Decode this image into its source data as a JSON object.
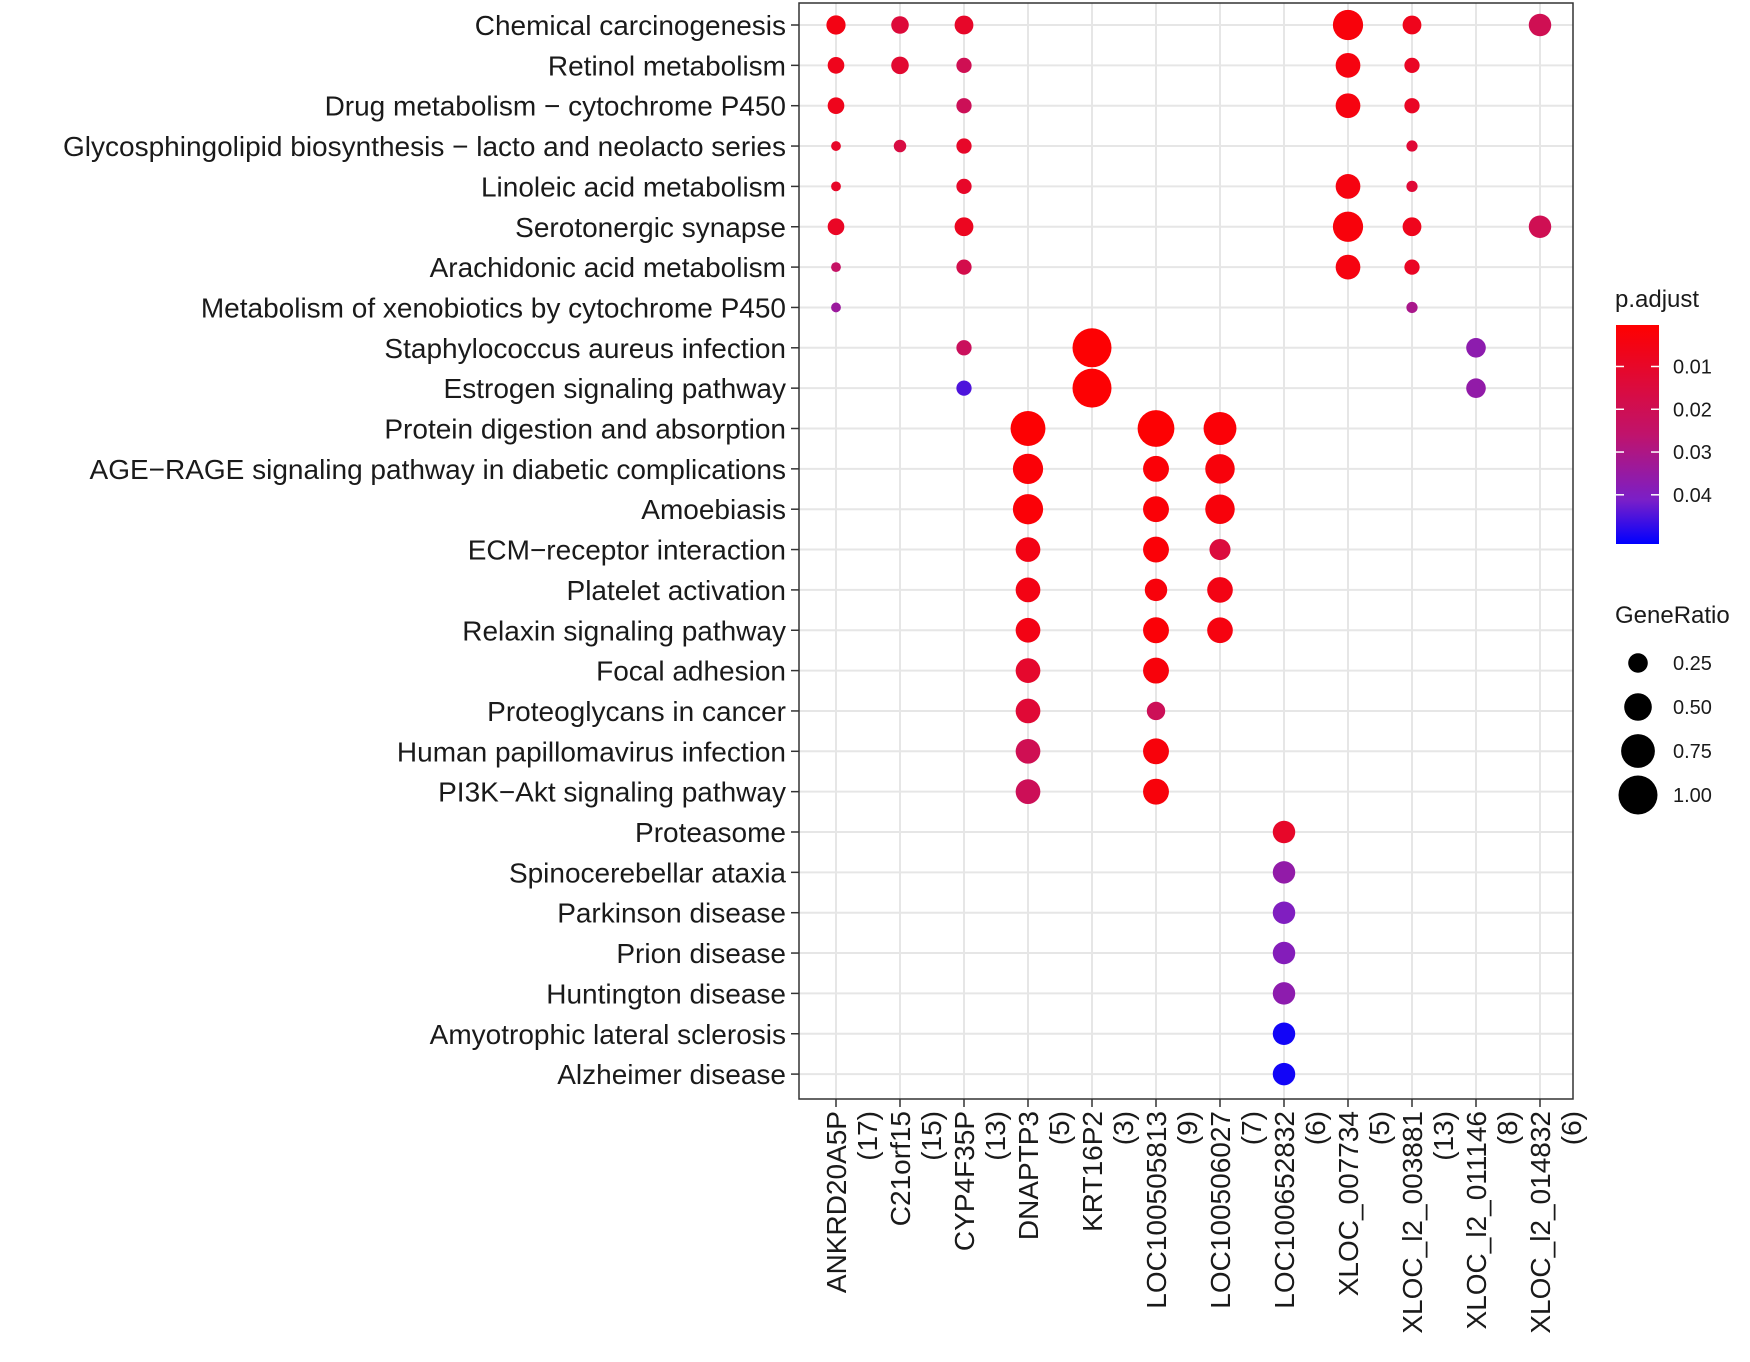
{
  "chart_data": {
    "type": "dotplot",
    "x_categories": [
      {
        "name": "ANKRD20A5P",
        "count": "(17)"
      },
      {
        "name": "C21orf15",
        "count": "(15)"
      },
      {
        "name": "CYP4F35P",
        "count": "(13)"
      },
      {
        "name": "DNAPTP3",
        "count": "(5)"
      },
      {
        "name": "KRT16P2",
        "count": "(3)"
      },
      {
        "name": "LOC100505813",
        "count": "(9)"
      },
      {
        "name": "LOC100506027",
        "count": "(7)"
      },
      {
        "name": "LOC100652832",
        "count": "(6)"
      },
      {
        "name": "XLOC_007734",
        "count": "(5)"
      },
      {
        "name": "XLOC_l2_003881",
        "count": "(13)"
      },
      {
        "name": "XLOC_l2_011146",
        "count": "(8)"
      },
      {
        "name": "XLOC_l2_014832",
        "count": "(6)"
      }
    ],
    "y_categories": [
      "Chemical carcinogenesis",
      "Retinol metabolism",
      "Drug metabolism − cytochrome P450",
      "Glycosphingolipid biosynthesis − lacto and neolacto series",
      "Linoleic acid metabolism",
      "Serotonergic synapse",
      "Arachidonic acid metabolism",
      "Metabolism of xenobiotics by cytochrome P450",
      "Staphylococcus aureus infection",
      "Estrogen signaling pathway",
      "Protein digestion and absorption",
      "AGE−RAGE signaling pathway in diabetic complications",
      "Amoebiasis",
      "ECM−receptor interaction",
      "Platelet activation",
      "Relaxin signaling pathway",
      "Focal adhesion",
      "Proteoglycans in cancer",
      "Human papillomavirus infection",
      "PI3K−Akt signaling pathway",
      "Proteasome",
      "Spinocerebellar ataxia",
      "Parkinson disease",
      "Prion disease",
      "Huntington disease",
      "Amyotrophic lateral sclerosis",
      "Alzheimer disease"
    ],
    "points": [
      {
        "x": "ANKRD20A5P",
        "y": "Chemical carcinogenesis",
        "gene_ratio": 0.24,
        "p_adjust": 0.005
      },
      {
        "x": "ANKRD20A5P",
        "y": "Retinol metabolism",
        "gene_ratio": 0.18,
        "p_adjust": 0.007
      },
      {
        "x": "ANKRD20A5P",
        "y": "Drug metabolism − cytochrome P450",
        "gene_ratio": 0.18,
        "p_adjust": 0.007
      },
      {
        "x": "ANKRD20A5P",
        "y": "Glycosphingolipid biosynthesis − lacto and neolacto series",
        "gene_ratio": 0.06,
        "p_adjust": 0.01
      },
      {
        "x": "ANKRD20A5P",
        "y": "Linoleic acid metabolism",
        "gene_ratio": 0.06,
        "p_adjust": 0.01
      },
      {
        "x": "ANKRD20A5P",
        "y": "Serotonergic synapse",
        "gene_ratio": 0.18,
        "p_adjust": 0.009
      },
      {
        "x": "ANKRD20A5P",
        "y": "Arachidonic acid metabolism",
        "gene_ratio": 0.06,
        "p_adjust": 0.024
      },
      {
        "x": "ANKRD20A5P",
        "y": "Metabolism of xenobiotics by cytochrome P450",
        "gene_ratio": 0.06,
        "p_adjust": 0.034
      },
      {
        "x": "C21orf15",
        "y": "Chemical carcinogenesis",
        "gene_ratio": 0.2,
        "p_adjust": 0.014
      },
      {
        "x": "C21orf15",
        "y": "Retinol metabolism",
        "gene_ratio": 0.2,
        "p_adjust": 0.012
      },
      {
        "x": "C21orf15",
        "y": "Glycosphingolipid biosynthesis − lacto and neolacto series",
        "gene_ratio": 0.1,
        "p_adjust": 0.016
      },
      {
        "x": "CYP4F35P",
        "y": "Chemical carcinogenesis",
        "gene_ratio": 0.23,
        "p_adjust": 0.01
      },
      {
        "x": "CYP4F35P",
        "y": "Retinol metabolism",
        "gene_ratio": 0.15,
        "p_adjust": 0.02
      },
      {
        "x": "CYP4F35P",
        "y": "Drug metabolism − cytochrome P450",
        "gene_ratio": 0.15,
        "p_adjust": 0.021
      },
      {
        "x": "CYP4F35P",
        "y": "Glycosphingolipid biosynthesis − lacto and neolacto series",
        "gene_ratio": 0.15,
        "p_adjust": 0.01
      },
      {
        "x": "CYP4F35P",
        "y": "Linoleic acid metabolism",
        "gene_ratio": 0.15,
        "p_adjust": 0.01
      },
      {
        "x": "CYP4F35P",
        "y": "Serotonergic synapse",
        "gene_ratio": 0.23,
        "p_adjust": 0.008
      },
      {
        "x": "CYP4F35P",
        "y": "Arachidonic acid metabolism",
        "gene_ratio": 0.15,
        "p_adjust": 0.018
      },
      {
        "x": "CYP4F35P",
        "y": "Staphylococcus aureus infection",
        "gene_ratio": 0.15,
        "p_adjust": 0.022
      },
      {
        "x": "CYP4F35P",
        "y": "Estrogen signaling pathway",
        "gene_ratio": 0.15,
        "p_adjust": 0.045
      },
      {
        "x": "DNAPTP3",
        "y": "Protein digestion and absorption",
        "gene_ratio": 0.8,
        "p_adjust": 0.001
      },
      {
        "x": "DNAPTP3",
        "y": "AGE−RAGE signaling pathway in diabetic complications",
        "gene_ratio": 0.6,
        "p_adjust": 0.002
      },
      {
        "x": "DNAPTP3",
        "y": "Amoebiasis",
        "gene_ratio": 0.6,
        "p_adjust": 0.002
      },
      {
        "x": "DNAPTP3",
        "y": "ECM−receptor interaction",
        "gene_ratio": 0.4,
        "p_adjust": 0.005
      },
      {
        "x": "DNAPTP3",
        "y": "Platelet activation",
        "gene_ratio": 0.4,
        "p_adjust": 0.005
      },
      {
        "x": "DNAPTP3",
        "y": "Relaxin signaling pathway",
        "gene_ratio": 0.4,
        "p_adjust": 0.005
      },
      {
        "x": "DNAPTP3",
        "y": "Focal adhesion",
        "gene_ratio": 0.4,
        "p_adjust": 0.011
      },
      {
        "x": "DNAPTP3",
        "y": "Proteoglycans in cancer",
        "gene_ratio": 0.4,
        "p_adjust": 0.013
      },
      {
        "x": "DNAPTP3",
        "y": "Human papillomavirus infection",
        "gene_ratio": 0.4,
        "p_adjust": 0.02
      },
      {
        "x": "DNAPTP3",
        "y": "PI3K−Akt signaling pathway",
        "gene_ratio": 0.4,
        "p_adjust": 0.021
      },
      {
        "x": "KRT16P2",
        "y": "Staphylococcus aureus infection",
        "gene_ratio": 1.0,
        "p_adjust": 0.001
      },
      {
        "x": "KRT16P2",
        "y": "Estrogen signaling pathway",
        "gene_ratio": 1.0,
        "p_adjust": 0.001
      },
      {
        "x": "LOC100505813",
        "y": "Protein digestion and absorption",
        "gene_ratio": 0.89,
        "p_adjust": 0.001
      },
      {
        "x": "LOC100505813",
        "y": "AGE−RAGE signaling pathway in diabetic complications",
        "gene_ratio": 0.44,
        "p_adjust": 0.002
      },
      {
        "x": "LOC100505813",
        "y": "Amoebiasis",
        "gene_ratio": 0.44,
        "p_adjust": 0.002
      },
      {
        "x": "LOC100505813",
        "y": "ECM−receptor interaction",
        "gene_ratio": 0.44,
        "p_adjust": 0.002
      },
      {
        "x": "LOC100505813",
        "y": "Platelet activation",
        "gene_ratio": 0.33,
        "p_adjust": 0.003
      },
      {
        "x": "LOC100505813",
        "y": "Relaxin signaling pathway",
        "gene_ratio": 0.44,
        "p_adjust": 0.002
      },
      {
        "x": "LOC100505813",
        "y": "Focal adhesion",
        "gene_ratio": 0.44,
        "p_adjust": 0.003
      },
      {
        "x": "LOC100505813",
        "y": "Proteoglycans in cancer",
        "gene_ratio": 0.22,
        "p_adjust": 0.021
      },
      {
        "x": "LOC100505813",
        "y": "Human papillomavirus infection",
        "gene_ratio": 0.44,
        "p_adjust": 0.003
      },
      {
        "x": "LOC100505813",
        "y": "PI3K−Akt signaling pathway",
        "gene_ratio": 0.44,
        "p_adjust": 0.003
      },
      {
        "x": "LOC100506027",
        "y": "Protein digestion and absorption",
        "gene_ratio": 0.71,
        "p_adjust": 0.002
      },
      {
        "x": "LOC100506027",
        "y": "AGE−RAGE signaling pathway in diabetic complications",
        "gene_ratio": 0.57,
        "p_adjust": 0.003
      },
      {
        "x": "LOC100506027",
        "y": "Amoebiasis",
        "gene_ratio": 0.57,
        "p_adjust": 0.003
      },
      {
        "x": "LOC100506027",
        "y": "ECM−receptor interaction",
        "gene_ratio": 0.29,
        "p_adjust": 0.015
      },
      {
        "x": "LOC100506027",
        "y": "Platelet activation",
        "gene_ratio": 0.43,
        "p_adjust": 0.005
      },
      {
        "x": "LOC100506027",
        "y": "Relaxin signaling pathway",
        "gene_ratio": 0.43,
        "p_adjust": 0.004
      },
      {
        "x": "LOC100652832",
        "y": "Proteasome",
        "gene_ratio": 0.33,
        "p_adjust": 0.01
      },
      {
        "x": "LOC100652832",
        "y": "Spinocerebellar ataxia",
        "gene_ratio": 0.33,
        "p_adjust": 0.036
      },
      {
        "x": "LOC100652832",
        "y": "Parkinson disease",
        "gene_ratio": 0.33,
        "p_adjust": 0.04
      },
      {
        "x": "LOC100652832",
        "y": "Prion disease",
        "gene_ratio": 0.33,
        "p_adjust": 0.039
      },
      {
        "x": "LOC100652832",
        "y": "Huntington disease",
        "gene_ratio": 0.33,
        "p_adjust": 0.037
      },
      {
        "x": "LOC100652832",
        "y": "Amyotrophic lateral sclerosis",
        "gene_ratio": 0.33,
        "p_adjust": 0.05
      },
      {
        "x": "LOC100652832",
        "y": "Alzheimer disease",
        "gene_ratio": 0.33,
        "p_adjust": 0.05
      },
      {
        "x": "XLOC_007734",
        "y": "Chemical carcinogenesis",
        "gene_ratio": 0.6,
        "p_adjust": 0.003
      },
      {
        "x": "XLOC_007734",
        "y": "Retinol metabolism",
        "gene_ratio": 0.4,
        "p_adjust": 0.004
      },
      {
        "x": "XLOC_007734",
        "y": "Drug metabolism − cytochrome P450",
        "gene_ratio": 0.4,
        "p_adjust": 0.004
      },
      {
        "x": "XLOC_007734",
        "y": "Linoleic acid metabolism",
        "gene_ratio": 0.4,
        "p_adjust": 0.004
      },
      {
        "x": "XLOC_007734",
        "y": "Serotonergic synapse",
        "gene_ratio": 0.6,
        "p_adjust": 0.003
      },
      {
        "x": "XLOC_007734",
        "y": "Arachidonic acid metabolism",
        "gene_ratio": 0.4,
        "p_adjust": 0.004
      },
      {
        "x": "XLOC_l2_003881",
        "y": "Chemical carcinogenesis",
        "gene_ratio": 0.23,
        "p_adjust": 0.007
      },
      {
        "x": "XLOC_l2_003881",
        "y": "Retinol metabolism",
        "gene_ratio": 0.15,
        "p_adjust": 0.009
      },
      {
        "x": "XLOC_l2_003881",
        "y": "Drug metabolism − cytochrome P450",
        "gene_ratio": 0.15,
        "p_adjust": 0.009
      },
      {
        "x": "XLOC_l2_003881",
        "y": "Glycosphingolipid biosynthesis − lacto and neolacto series",
        "gene_ratio": 0.08,
        "p_adjust": 0.013
      },
      {
        "x": "XLOC_l2_003881",
        "y": "Linoleic acid metabolism",
        "gene_ratio": 0.08,
        "p_adjust": 0.013
      },
      {
        "x": "XLOC_l2_003881",
        "y": "Serotonergic synapse",
        "gene_ratio": 0.23,
        "p_adjust": 0.007
      },
      {
        "x": "XLOC_l2_003881",
        "y": "Arachidonic acid metabolism",
        "gene_ratio": 0.15,
        "p_adjust": 0.009
      },
      {
        "x": "XLOC_l2_003881",
        "y": "Metabolism of xenobiotics by cytochrome P450",
        "gene_ratio": 0.08,
        "p_adjust": 0.031
      },
      {
        "x": "XLOC_l2_011146",
        "y": "Staphylococcus aureus infection",
        "gene_ratio": 0.25,
        "p_adjust": 0.037
      },
      {
        "x": "XLOC_l2_011146",
        "y": "Estrogen signaling pathway",
        "gene_ratio": 0.25,
        "p_adjust": 0.036
      },
      {
        "x": "XLOC_l2_014832",
        "y": "Chemical carcinogenesis",
        "gene_ratio": 0.33,
        "p_adjust": 0.02
      },
      {
        "x": "XLOC_l2_014832",
        "y": "Serotonergic synapse",
        "gene_ratio": 0.33,
        "p_adjust": 0.02
      }
    ],
    "color_scale": {
      "title": "p.adjust",
      "domain": [
        0.0003,
        0.0515
      ],
      "low_color": "#FF0000",
      "high_color": "#0000FF",
      "ticks": [
        0.01,
        0.02,
        0.03,
        0.04
      ],
      "tick_labels": [
        "0.01",
        "0.02",
        "0.03",
        "0.04"
      ]
    },
    "size_scale": {
      "title": "GeneRatio",
      "domain": [
        0.05,
        1.0
      ],
      "ticks": [
        0.25,
        0.5,
        0.75,
        1.0
      ],
      "tick_labels": [
        "0.25",
        "0.50",
        "0.75",
        "1.00"
      ]
    },
    "grid": true,
    "legend_position": "right"
  }
}
